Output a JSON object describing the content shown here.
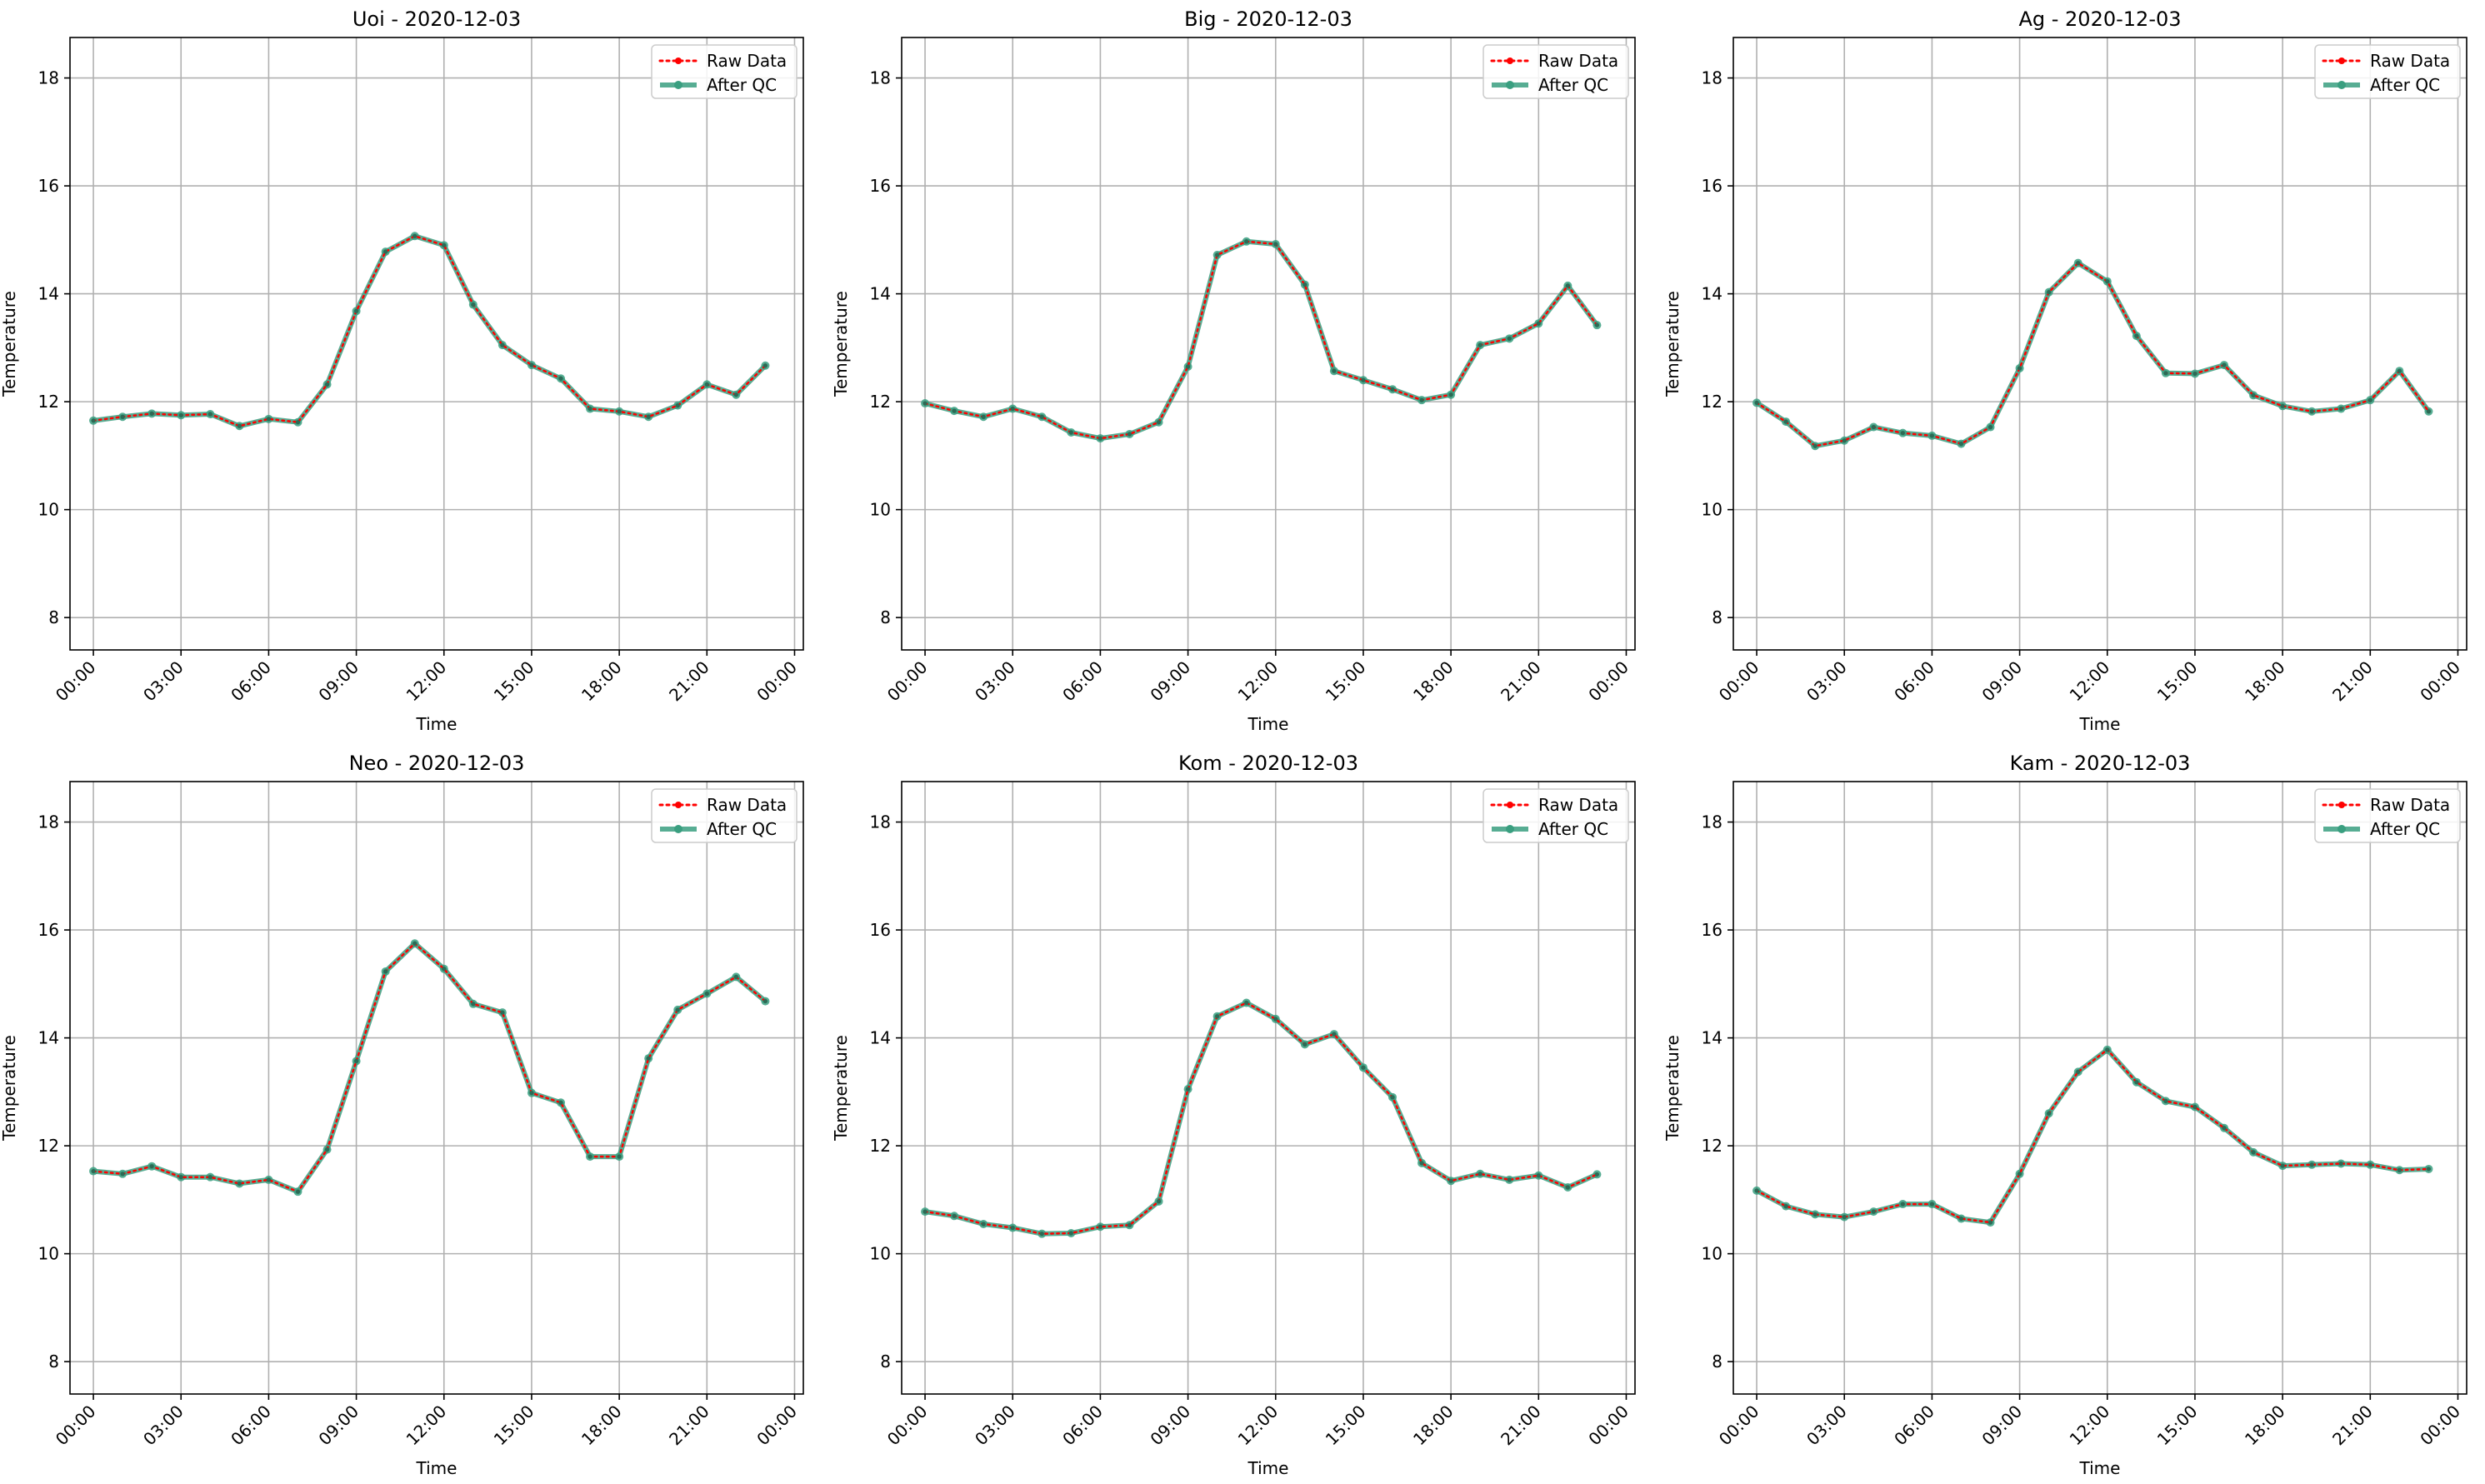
{
  "chart_data": [
    {
      "type": "line",
      "title": "Uoi - 2020-12-03",
      "xlabel": "Time",
      "ylabel": "Temperature",
      "ylim": [
        7.4,
        18.75
      ],
      "yticks": [
        8,
        10,
        12,
        14,
        16,
        18
      ],
      "xticks": [
        "00:00",
        "03:00",
        "06:00",
        "09:00",
        "12:00",
        "15:00",
        "18:00",
        "21:00",
        "00:00"
      ],
      "x": [
        "00:00",
        "01:00",
        "02:00",
        "03:00",
        "04:00",
        "05:00",
        "06:00",
        "07:00",
        "08:00",
        "09:00",
        "10:00",
        "11:00",
        "12:00",
        "13:00",
        "14:00",
        "15:00",
        "16:00",
        "17:00",
        "18:00",
        "19:00",
        "20:00",
        "21:00",
        "22:00",
        "23:00"
      ],
      "grid": true,
      "legend": "top-right",
      "series": [
        {
          "name": "Raw Data",
          "color": "#ff0000",
          "values": [
            11.65,
            11.72,
            11.78,
            11.75,
            11.77,
            11.55,
            11.68,
            11.62,
            12.32,
            13.68,
            14.78,
            15.07,
            14.9,
            13.8,
            13.05,
            12.68,
            12.43,
            11.87,
            11.82,
            11.72,
            11.93,
            12.32,
            12.13,
            12.67
          ]
        },
        {
          "name": "After QC",
          "color": "#3a9f80",
          "values": [
            11.65,
            11.72,
            11.78,
            11.75,
            11.77,
            11.55,
            11.68,
            11.62,
            12.32,
            13.68,
            14.78,
            15.07,
            14.9,
            13.8,
            13.05,
            12.68,
            12.43,
            11.87,
            11.82,
            11.72,
            11.93,
            12.32,
            12.13,
            12.67
          ]
        }
      ]
    },
    {
      "type": "line",
      "title": "Big - 2020-12-03",
      "xlabel": "Time",
      "ylabel": "Temperature",
      "ylim": [
        7.4,
        18.75
      ],
      "yticks": [
        8,
        10,
        12,
        14,
        16,
        18
      ],
      "xticks": [
        "00:00",
        "03:00",
        "06:00",
        "09:00",
        "12:00",
        "15:00",
        "18:00",
        "21:00",
        "00:00"
      ],
      "x": [
        "00:00",
        "01:00",
        "02:00",
        "03:00",
        "04:00",
        "05:00",
        "06:00",
        "07:00",
        "08:00",
        "09:00",
        "10:00",
        "11:00",
        "12:00",
        "13:00",
        "14:00",
        "15:00",
        "16:00",
        "17:00",
        "18:00",
        "19:00",
        "20:00",
        "21:00",
        "22:00",
        "23:00"
      ],
      "grid": true,
      "legend": "top-right",
      "series": [
        {
          "name": "Raw Data",
          "color": "#ff0000",
          "values": [
            11.97,
            11.83,
            11.72,
            11.87,
            11.72,
            11.43,
            11.32,
            11.4,
            11.62,
            12.65,
            14.72,
            14.97,
            14.92,
            14.17,
            12.57,
            12.4,
            12.23,
            12.03,
            12.13,
            13.05,
            13.17,
            13.45,
            14.15,
            13.42
          ]
        },
        {
          "name": "After QC",
          "color": "#3a9f80",
          "values": [
            11.97,
            11.83,
            11.72,
            11.87,
            11.72,
            11.43,
            11.32,
            11.4,
            11.62,
            12.65,
            14.72,
            14.97,
            14.92,
            14.17,
            12.57,
            12.4,
            12.23,
            12.03,
            12.13,
            13.05,
            13.17,
            13.45,
            14.15,
            13.42
          ]
        }
      ]
    },
    {
      "type": "line",
      "title": "Ag - 2020-12-03",
      "xlabel": "Time",
      "ylabel": "Temperature",
      "ylim": [
        7.4,
        18.75
      ],
      "yticks": [
        8,
        10,
        12,
        14,
        16,
        18
      ],
      "xticks": [
        "00:00",
        "03:00",
        "06:00",
        "09:00",
        "12:00",
        "15:00",
        "18:00",
        "21:00",
        "00:00"
      ],
      "x": [
        "00:00",
        "01:00",
        "02:00",
        "03:00",
        "04:00",
        "05:00",
        "06:00",
        "07:00",
        "08:00",
        "09:00",
        "10:00",
        "11:00",
        "12:00",
        "13:00",
        "14:00",
        "15:00",
        "16:00",
        "17:00",
        "18:00",
        "19:00",
        "20:00",
        "21:00",
        "22:00",
        "23:00"
      ],
      "grid": true,
      "legend": "top-right",
      "series": [
        {
          "name": "Raw Data",
          "color": "#ff0000",
          "values": [
            11.98,
            11.63,
            11.18,
            11.28,
            11.53,
            11.42,
            11.37,
            11.22,
            11.53,
            12.62,
            14.03,
            14.57,
            14.23,
            13.22,
            12.53,
            12.52,
            12.68,
            12.12,
            11.92,
            11.82,
            11.87,
            12.03,
            12.57,
            11.82
          ]
        },
        {
          "name": "After QC",
          "color": "#3a9f80",
          "values": [
            11.98,
            11.63,
            11.18,
            11.28,
            11.53,
            11.42,
            11.37,
            11.22,
            11.53,
            12.62,
            14.03,
            14.57,
            14.23,
            13.22,
            12.53,
            12.52,
            12.68,
            12.12,
            11.92,
            11.82,
            11.87,
            12.03,
            12.57,
            11.82
          ]
        }
      ]
    },
    {
      "type": "line",
      "title": "Neo - 2020-12-03",
      "xlabel": "Time",
      "ylabel": "Temperature",
      "ylim": [
        7.4,
        18.75
      ],
      "yticks": [
        8,
        10,
        12,
        14,
        16,
        18
      ],
      "xticks": [
        "00:00",
        "03:00",
        "06:00",
        "09:00",
        "12:00",
        "15:00",
        "18:00",
        "21:00",
        "00:00"
      ],
      "x": [
        "00:00",
        "01:00",
        "02:00",
        "03:00",
        "04:00",
        "05:00",
        "06:00",
        "07:00",
        "08:00",
        "09:00",
        "10:00",
        "11:00",
        "12:00",
        "13:00",
        "14:00",
        "15:00",
        "16:00",
        "17:00",
        "18:00",
        "19:00",
        "20:00",
        "21:00",
        "22:00",
        "23:00"
      ],
      "grid": true,
      "legend": "top-right",
      "series": [
        {
          "name": "Raw Data",
          "color": "#ff0000",
          "values": [
            11.53,
            11.48,
            11.62,
            11.42,
            11.42,
            11.3,
            11.37,
            11.15,
            11.93,
            13.57,
            15.23,
            15.75,
            15.28,
            14.63,
            14.47,
            12.98,
            12.8,
            11.8,
            11.8,
            13.62,
            14.52,
            14.82,
            15.13,
            14.68
          ]
        },
        {
          "name": "After QC",
          "color": "#3a9f80",
          "values": [
            11.53,
            11.48,
            11.62,
            11.42,
            11.42,
            11.3,
            11.37,
            11.15,
            11.93,
            13.57,
            15.23,
            15.75,
            15.28,
            14.63,
            14.47,
            12.98,
            12.8,
            11.8,
            11.8,
            13.62,
            14.52,
            14.82,
            15.13,
            14.68
          ]
        }
      ]
    },
    {
      "type": "line",
      "title": "Kom - 2020-12-03",
      "xlabel": "Time",
      "ylabel": "Temperature",
      "ylim": [
        7.4,
        18.75
      ],
      "yticks": [
        8,
        10,
        12,
        14,
        16,
        18
      ],
      "xticks": [
        "00:00",
        "03:00",
        "06:00",
        "09:00",
        "12:00",
        "15:00",
        "18:00",
        "21:00",
        "00:00"
      ],
      "x": [
        "00:00",
        "01:00",
        "02:00",
        "03:00",
        "04:00",
        "05:00",
        "06:00",
        "07:00",
        "08:00",
        "09:00",
        "10:00",
        "11:00",
        "12:00",
        "13:00",
        "14:00",
        "15:00",
        "16:00",
        "17:00",
        "18:00",
        "19:00",
        "20:00",
        "21:00",
        "22:00",
        "23:00"
      ],
      "grid": true,
      "legend": "top-right",
      "series": [
        {
          "name": "Raw Data",
          "color": "#ff0000",
          "values": [
            10.78,
            10.7,
            10.55,
            10.48,
            10.37,
            10.38,
            10.5,
            10.53,
            10.97,
            13.05,
            14.4,
            14.65,
            14.35,
            13.88,
            14.07,
            13.45,
            12.9,
            11.68,
            11.35,
            11.48,
            11.37,
            11.45,
            11.23,
            11.47
          ]
        },
        {
          "name": "After QC",
          "color": "#3a9f80",
          "values": [
            10.78,
            10.7,
            10.55,
            10.48,
            10.37,
            10.38,
            10.5,
            10.53,
            10.97,
            13.05,
            14.4,
            14.65,
            14.35,
            13.88,
            14.07,
            13.45,
            12.9,
            11.68,
            11.35,
            11.48,
            11.37,
            11.45,
            11.23,
            11.47
          ]
        }
      ]
    },
    {
      "type": "line",
      "title": "Kam - 2020-12-03",
      "xlabel": "Time",
      "ylabel": "Temperature",
      "ylim": [
        7.4,
        18.75
      ],
      "yticks": [
        8,
        10,
        12,
        14,
        16,
        18
      ],
      "xticks": [
        "00:00",
        "03:00",
        "06:00",
        "09:00",
        "12:00",
        "15:00",
        "18:00",
        "21:00",
        "00:00"
      ],
      "x": [
        "00:00",
        "01:00",
        "02:00",
        "03:00",
        "04:00",
        "05:00",
        "06:00",
        "07:00",
        "08:00",
        "09:00",
        "10:00",
        "11:00",
        "12:00",
        "13:00",
        "14:00",
        "15:00",
        "16:00",
        "17:00",
        "18:00",
        "19:00",
        "20:00",
        "21:00",
        "22:00",
        "23:00"
      ],
      "grid": true,
      "legend": "top-right",
      "series": [
        {
          "name": "Raw Data",
          "color": "#ff0000",
          "values": [
            11.17,
            10.88,
            10.73,
            10.68,
            10.78,
            10.92,
            10.92,
            10.65,
            10.58,
            11.48,
            12.6,
            13.37,
            13.78,
            13.18,
            12.83,
            12.72,
            12.33,
            11.88,
            11.63,
            11.65,
            11.67,
            11.65,
            11.55,
            11.57
          ]
        },
        {
          "name": "After QC",
          "color": "#3a9f80",
          "values": [
            11.17,
            10.88,
            10.73,
            10.68,
            10.78,
            10.92,
            10.92,
            10.65,
            10.58,
            11.48,
            12.6,
            13.37,
            13.78,
            13.18,
            12.83,
            12.72,
            12.33,
            11.88,
            11.63,
            11.65,
            11.67,
            11.65,
            11.55,
            11.57
          ]
        }
      ]
    }
  ]
}
